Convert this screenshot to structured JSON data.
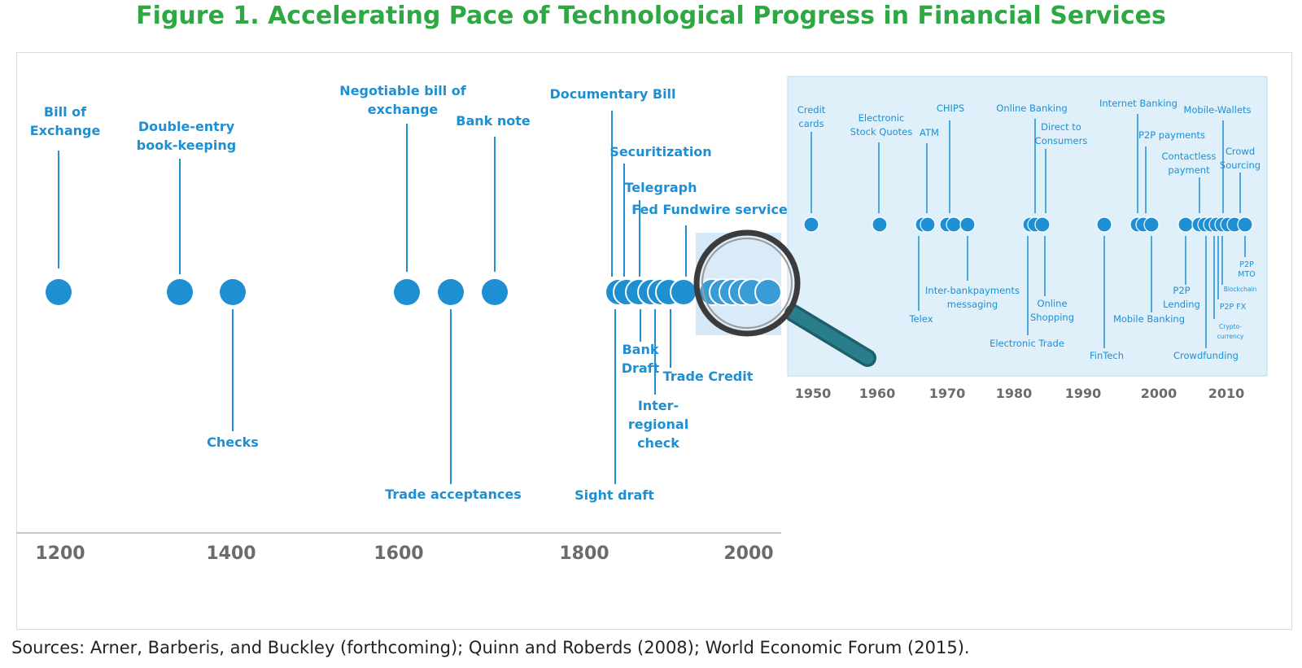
{
  "title": "Figure 1. Accelerating Pace of Technological Progress in Financial Services",
  "source": "Sources: Arner, Barberis, and Buckley (forthcoming); Quinn and Roberds (2008); World Economic Forum (2015).",
  "colors": {
    "title": "#2ea843",
    "dot": "#1e8fd2",
    "label": "#1e8fd2",
    "axis": "#6b6b6b",
    "inset_bg": "#dff0fb",
    "magnifier": "#2a7e8c"
  },
  "main_timeline": {
    "axis_years": [
      "1200",
      "1400",
      "1600",
      "1800",
      "2000"
    ],
    "above": [
      {
        "label": [
          "Bill of",
          "Exchange"
        ],
        "year": 1200
      },
      {
        "label": [
          "Double-entry",
          "book-keeping"
        ],
        "year": 1340
      },
      {
        "label": [
          "Negotiable bill of",
          "exchange"
        ],
        "year": 1608
      },
      {
        "label": [
          "Bank note"
        ],
        "year": 1695
      },
      {
        "label": [
          "Documentary Bill"
        ],
        "year": 1831
      },
      {
        "label": [
          "Securitization"
        ],
        "year": 1849
      },
      {
        "label": [
          "Telegraph"
        ],
        "year": 1863
      },
      {
        "label": [
          "Fed Fundwire service"
        ],
        "year": 1918
      }
    ],
    "below": [
      {
        "label": [
          "Checks"
        ],
        "year": 1400
      },
      {
        "label": [
          "Trade acceptances"
        ],
        "year": 1658
      },
      {
        "label": [
          "Sight draft"
        ],
        "year": 1834
      },
      {
        "label": [
          "Bank",
          "Draft"
        ],
        "year": 1868
      },
      {
        "label": [
          "Inter-",
          "regional",
          "check"
        ],
        "year": 1882
      },
      {
        "label": [
          "Trade Credit"
        ],
        "year": 1899
      }
    ]
  },
  "inset_timeline": {
    "axis_years": [
      "1950",
      "1960",
      "1970",
      "1980",
      "1990",
      "2000",
      "2010"
    ],
    "above": [
      {
        "label": [
          "Credit",
          "cards"
        ],
        "year": 1950
      },
      {
        "label": [
          "Electronic",
          "Stock Quotes"
        ],
        "year": 1960
      },
      {
        "label": [
          "ATM"
        ],
        "year": 1967
      },
      {
        "label": [
          "CHIPS"
        ],
        "year": 1970
      },
      {
        "label": [
          "Online Banking"
        ],
        "year": 1983
      },
      {
        "label": [
          "Direct to",
          "Consumers"
        ],
        "year": 1984
      },
      {
        "label": [
          "Internet Banking"
        ],
        "year": 1998
      },
      {
        "label": [
          "P2P payments"
        ],
        "year": 1999
      },
      {
        "label": [
          "Contactless",
          "payment"
        ],
        "year": 2006
      },
      {
        "label": [
          "Mobile-Wallets"
        ],
        "year": 2009
      },
      {
        "label": [
          "Crowd",
          "Sourcing"
        ],
        "year": 2012
      }
    ],
    "below": [
      {
        "label": [
          "Telex"
        ],
        "year": 1966
      },
      {
        "label": [
          "Inter-bankpayments",
          "messaging"
        ],
        "year": 1973
      },
      {
        "label": [
          "Electronic Trade"
        ],
        "year": 1982
      },
      {
        "label": [
          "Online",
          "Shopping"
        ],
        "year": 1984
      },
      {
        "label": [
          "FinTech"
        ],
        "year": 1992
      },
      {
        "label": [
          "Mobile Banking"
        ],
        "year": 2000
      },
      {
        "label": [
          "P2P",
          "Lending"
        ],
        "year": 2005
      },
      {
        "label": [
          "Crowdfunding"
        ],
        "year": 2007
      },
      {
        "label": [
          "Crypto-",
          "currency"
        ],
        "year": 2008
      },
      {
        "label": [
          "P2P FX"
        ],
        "year": 2009
      },
      {
        "label": [
          "Blockchain"
        ],
        "year": 2010
      },
      {
        "label": [
          "P2P",
          "MTO"
        ],
        "year": 2011
      }
    ]
  }
}
